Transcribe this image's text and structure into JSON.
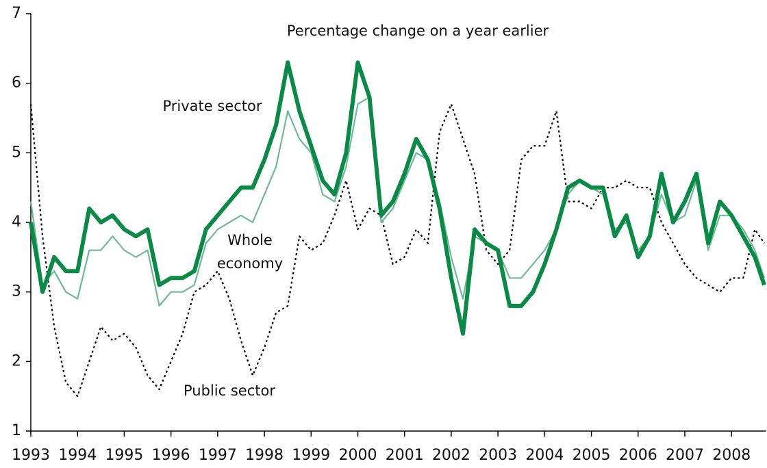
{
  "chart_data": {
    "type": "line",
    "subtitle": "Percentage change on a year earlier",
    "x": [
      1993,
      1993.25,
      1993.5,
      1993.75,
      1994,
      1994.25,
      1994.5,
      1994.75,
      1995,
      1995.25,
      1995.5,
      1995.75,
      1996,
      1996.25,
      1996.5,
      1996.75,
      1997,
      1997.25,
      1997.5,
      1997.75,
      1998,
      1998.25,
      1998.5,
      1998.75,
      1999,
      1999.25,
      1999.5,
      1999.75,
      2000,
      2000.25,
      2000.5,
      2000.75,
      2001,
      2001.25,
      2001.5,
      2001.75,
      2002,
      2002.25,
      2002.5,
      2002.75,
      2003,
      2003.25,
      2003.5,
      2003.75,
      2004,
      2004.25,
      2004.5,
      2004.75,
      2005,
      2005.25,
      2005.5,
      2005.75,
      2006,
      2006.25,
      2006.5,
      2006.75,
      2007,
      2007.25,
      2007.5,
      2007.75,
      2008,
      2008.25,
      2008.5,
      2008.7
    ],
    "series": [
      {
        "name": "Public sector",
        "color": "#000000",
        "style": "dotted",
        "values": [
          5.7,
          3.8,
          2.5,
          1.7,
          1.5,
          2.0,
          2.5,
          2.3,
          2.4,
          2.2,
          1.8,
          1.6,
          2.0,
          2.4,
          3.0,
          3.1,
          3.3,
          2.9,
          2.3,
          1.8,
          2.2,
          2.7,
          2.8,
          3.8,
          3.6,
          3.7,
          4.1,
          4.6,
          3.9,
          4.2,
          4.1,
          3.4,
          3.5,
          3.9,
          3.7,
          5.3,
          5.7,
          5.2,
          4.7,
          3.6,
          3.4,
          3.6,
          4.9,
          5.1,
          5.1,
          5.6,
          4.3,
          4.3,
          4.2,
          4.5,
          4.5,
          4.6,
          4.5,
          4.5,
          4.0,
          3.7,
          3.4,
          3.2,
          3.1,
          3.0,
          3.2,
          3.2,
          3.9,
          3.7
        ]
      },
      {
        "name": "Whole economy",
        "color": "#6dbb94",
        "style": "thin",
        "values": [
          4.3,
          3.1,
          3.3,
          3.0,
          2.9,
          3.6,
          3.6,
          3.8,
          3.6,
          3.5,
          3.6,
          2.8,
          3.0,
          3.0,
          3.1,
          3.7,
          3.9,
          4.0,
          4.1,
          4.0,
          4.4,
          4.8,
          5.6,
          5.2,
          5.0,
          4.4,
          4.3,
          4.8,
          5.7,
          5.8,
          4.0,
          4.2,
          4.6,
          5.0,
          4.9,
          4.3,
          3.5,
          2.9,
          3.8,
          3.7,
          3.6,
          3.2,
          3.2,
          3.4,
          3.6,
          3.9,
          4.4,
          4.6,
          4.5,
          4.4,
          3.9,
          4.0,
          3.6,
          3.8,
          4.4,
          4.0,
          4.1,
          4.6,
          3.6,
          4.1,
          4.1,
          3.9,
          3.6,
          3.2
        ]
      },
      {
        "name": "Private sector",
        "color": "#0a8a47",
        "style": "thick",
        "values": [
          4.0,
          3.0,
          3.5,
          3.3,
          3.3,
          4.2,
          4.0,
          4.1,
          3.9,
          3.8,
          3.9,
          3.1,
          3.2,
          3.2,
          3.3,
          3.9,
          4.1,
          4.3,
          4.5,
          4.5,
          4.9,
          5.4,
          6.3,
          5.6,
          5.1,
          4.6,
          4.4,
          5.0,
          6.3,
          5.8,
          4.1,
          4.3,
          4.7,
          5.2,
          4.9,
          4.2,
          3.2,
          2.4,
          3.9,
          3.7,
          3.6,
          2.8,
          2.8,
          3.0,
          3.4,
          3.9,
          4.5,
          4.6,
          4.5,
          4.5,
          3.8,
          4.1,
          3.5,
          3.8,
          4.7,
          4.0,
          4.3,
          4.7,
          3.7,
          4.3,
          4.1,
          3.8,
          3.5,
          3.1
        ]
      }
    ],
    "xlim": [
      1993,
      2008.73
    ],
    "xticks": [
      1993,
      1994,
      1995,
      1996,
      1997,
      1998,
      1999,
      2000,
      2001,
      2002,
      2003,
      2004,
      2005,
      2006,
      2007,
      2008
    ],
    "ylim": [
      1,
      7
    ],
    "yticks": [
      1,
      2,
      3,
      4,
      5,
      6,
      7
    ],
    "grid": false
  }
}
